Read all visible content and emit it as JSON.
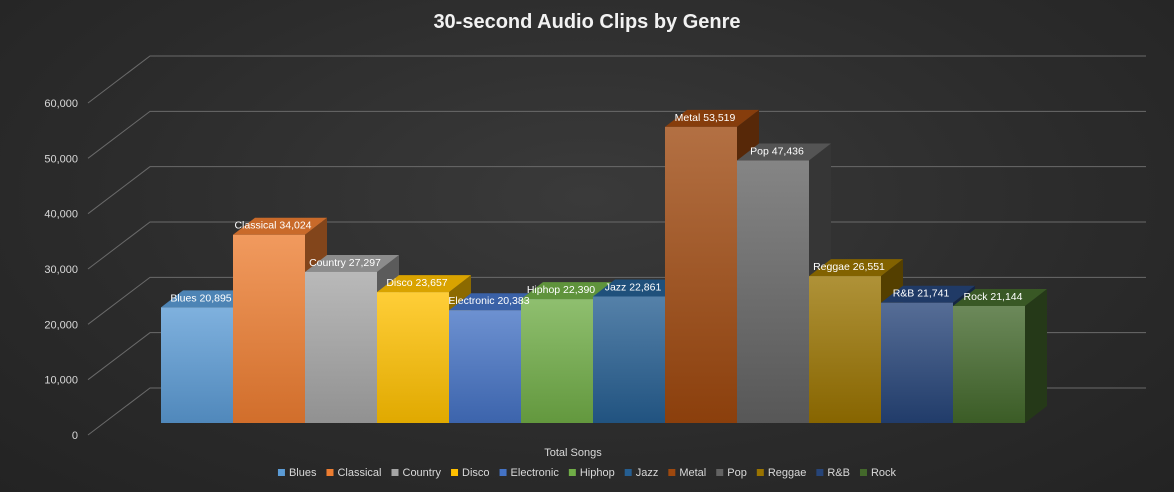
{
  "chart_data": {
    "type": "bar",
    "title": "30-second Audio Clips by Genre",
    "xlabel": "Total Songs",
    "ylabel": "",
    "categories": [
      "Total Songs"
    ],
    "yticks": [
      "0",
      "10,000",
      "20,000",
      "30,000",
      "40,000",
      "50,000",
      "60,000"
    ],
    "ylim": [
      0,
      60000
    ],
    "grid": true,
    "legend_position": "bottom",
    "series": [
      {
        "name": "Blues",
        "values": [
          20895
        ],
        "label": "Blues  20,895",
        "color": "#5b9bd5"
      },
      {
        "name": "Classical",
        "values": [
          34024
        ],
        "label": "Classical  34,024",
        "color": "#ed7d31"
      },
      {
        "name": "Country",
        "values": [
          27297
        ],
        "label": "Country  27,297",
        "color": "#a5a5a5"
      },
      {
        "name": "Disco",
        "values": [
          23657
        ],
        "label": "Disco  23,657",
        "color": "#ffc000"
      },
      {
        "name": "Electronic",
        "values": [
          20383
        ],
        "label": "Electronic  20,383",
        "color": "#4472c4"
      },
      {
        "name": "Hiphop",
        "values": [
          22390
        ],
        "label": "Hiphop  22,390",
        "color": "#70ad47"
      },
      {
        "name": "Jazz",
        "values": [
          22861
        ],
        "label": "Jazz  22,861",
        "color": "#255e91"
      },
      {
        "name": "Metal",
        "values": [
          53519
        ],
        "label": "Metal  53,519",
        "color": "#9e480e"
      },
      {
        "name": "Pop",
        "values": [
          47436
        ],
        "label": "Pop  47,436",
        "color": "#636363"
      },
      {
        "name": "Reggae",
        "values": [
          26551
        ],
        "label": "Reggae  26,551",
        "color": "#997300"
      },
      {
        "name": "R&B",
        "values": [
          21741
        ],
        "label": "R&B  21,741",
        "color": "#264478"
      },
      {
        "name": "Rock",
        "values": [
          21144
        ],
        "label": "Rock  21,144",
        "color": "#43682b"
      }
    ]
  }
}
